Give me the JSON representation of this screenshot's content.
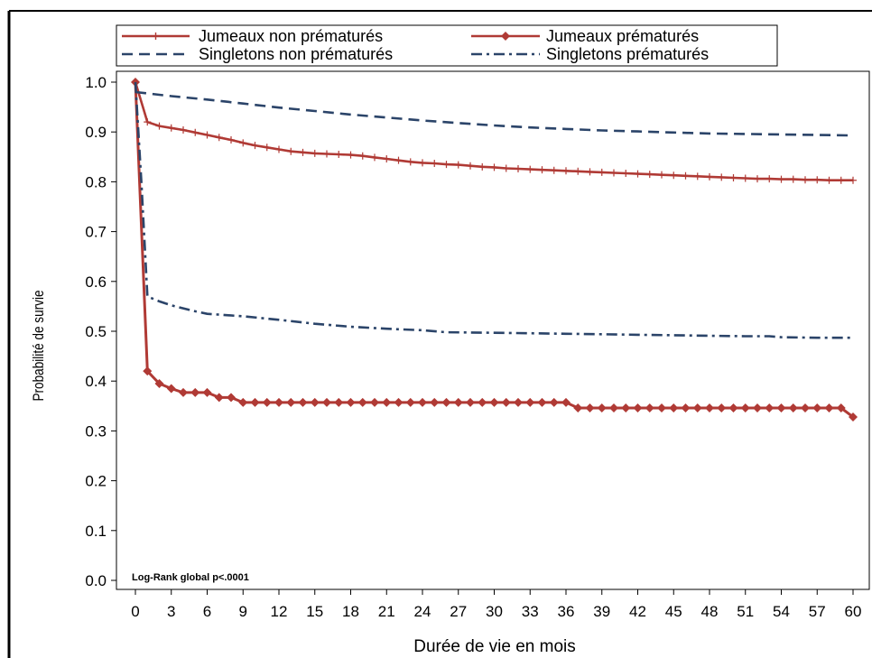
{
  "chart_data": {
    "type": "line",
    "xlabel": "Durée de vie en mois",
    "ylabel": "Probabilité de survie",
    "xlim": [
      0,
      60
    ],
    "ylim": [
      0.0,
      1.0
    ],
    "x_ticks": [
      0,
      3,
      6,
      9,
      12,
      15,
      18,
      21,
      24,
      27,
      30,
      33,
      36,
      39,
      42,
      45,
      48,
      51,
      54,
      57,
      60
    ],
    "y_ticks": [
      "0.0",
      "0.1",
      "0.2",
      "0.3",
      "0.4",
      "0.5",
      "0.6",
      "0.7",
      "0.8",
      "0.9",
      "1.0"
    ],
    "grid": false,
    "legend_position": "top",
    "annotation": "Log-Rank global p<.0001",
    "series": [
      {
        "name": "Jumeaux non prématurés",
        "color": "#b03a35",
        "style": "solid-plus",
        "points": [
          [
            0,
            1.0
          ],
          [
            1,
            0.92
          ],
          [
            2,
            0.912
          ],
          [
            3,
            0.908
          ],
          [
            4,
            0.904
          ],
          [
            5,
            0.899
          ],
          [
            6,
            0.894
          ],
          [
            7,
            0.889
          ],
          [
            8,
            0.884
          ],
          [
            9,
            0.878
          ],
          [
            10,
            0.873
          ],
          [
            11,
            0.869
          ],
          [
            12,
            0.865
          ],
          [
            13,
            0.861
          ],
          [
            14,
            0.859
          ],
          [
            15,
            0.857
          ],
          [
            16,
            0.856
          ],
          [
            17,
            0.855
          ],
          [
            18,
            0.854
          ],
          [
            19,
            0.852
          ],
          [
            20,
            0.849
          ],
          [
            21,
            0.846
          ],
          [
            22,
            0.843
          ],
          [
            23,
            0.84
          ],
          [
            24,
            0.838
          ],
          [
            25,
            0.837
          ],
          [
            26,
            0.835
          ],
          [
            27,
            0.834
          ],
          [
            28,
            0.832
          ],
          [
            29,
            0.83
          ],
          [
            30,
            0.829
          ],
          [
            31,
            0.827
          ],
          [
            32,
            0.826
          ],
          [
            33,
            0.825
          ],
          [
            34,
            0.824
          ],
          [
            35,
            0.823
          ],
          [
            36,
            0.822
          ],
          [
            37,
            0.821
          ],
          [
            38,
            0.82
          ],
          [
            39,
            0.819
          ],
          [
            40,
            0.818
          ],
          [
            41,
            0.817
          ],
          [
            42,
            0.816
          ],
          [
            43,
            0.815
          ],
          [
            44,
            0.814
          ],
          [
            45,
            0.813
          ],
          [
            46,
            0.812
          ],
          [
            47,
            0.811
          ],
          [
            48,
            0.81
          ],
          [
            49,
            0.809
          ],
          [
            50,
            0.808
          ],
          [
            51,
            0.807
          ],
          [
            52,
            0.806
          ],
          [
            53,
            0.806
          ],
          [
            54,
            0.805
          ],
          [
            55,
            0.805
          ],
          [
            56,
            0.804
          ],
          [
            57,
            0.804
          ],
          [
            58,
            0.803
          ],
          [
            59,
            0.803
          ],
          [
            60,
            0.803
          ]
        ]
      },
      {
        "name": "Jumeaux prématurés",
        "color": "#b03a35",
        "style": "solid-diamond",
        "points": [
          [
            0,
            1.0
          ],
          [
            1,
            0.42
          ],
          [
            2,
            0.395
          ],
          [
            3,
            0.385
          ],
          [
            4,
            0.377
          ],
          [
            5,
            0.377
          ],
          [
            6,
            0.377
          ],
          [
            7,
            0.367
          ],
          [
            8,
            0.367
          ],
          [
            9,
            0.357
          ],
          [
            10,
            0.357
          ],
          [
            11,
            0.357
          ],
          [
            12,
            0.357
          ],
          [
            13,
            0.357
          ],
          [
            14,
            0.357
          ],
          [
            15,
            0.357
          ],
          [
            16,
            0.357
          ],
          [
            17,
            0.357
          ],
          [
            18,
            0.357
          ],
          [
            19,
            0.357
          ],
          [
            20,
            0.357
          ],
          [
            21,
            0.357
          ],
          [
            22,
            0.357
          ],
          [
            23,
            0.357
          ],
          [
            24,
            0.357
          ],
          [
            25,
            0.357
          ],
          [
            26,
            0.357
          ],
          [
            27,
            0.357
          ],
          [
            28,
            0.357
          ],
          [
            29,
            0.357
          ],
          [
            30,
            0.357
          ],
          [
            31,
            0.357
          ],
          [
            32,
            0.357
          ],
          [
            33,
            0.357
          ],
          [
            34,
            0.357
          ],
          [
            35,
            0.357
          ],
          [
            36,
            0.357
          ],
          [
            37,
            0.346
          ],
          [
            38,
            0.346
          ],
          [
            39,
            0.346
          ],
          [
            40,
            0.346
          ],
          [
            41,
            0.346
          ],
          [
            42,
            0.346
          ],
          [
            43,
            0.346
          ],
          [
            44,
            0.346
          ],
          [
            45,
            0.346
          ],
          [
            46,
            0.346
          ],
          [
            47,
            0.346
          ],
          [
            48,
            0.346
          ],
          [
            49,
            0.346
          ],
          [
            50,
            0.346
          ],
          [
            51,
            0.346
          ],
          [
            52,
            0.346
          ],
          [
            53,
            0.346
          ],
          [
            54,
            0.346
          ],
          [
            55,
            0.346
          ],
          [
            56,
            0.346
          ],
          [
            57,
            0.346
          ],
          [
            58,
            0.346
          ],
          [
            59,
            0.346
          ],
          [
            60,
            0.328
          ]
        ]
      },
      {
        "name": "Singletons non prématurés",
        "color": "#2b4469",
        "style": "dashed",
        "points": [
          [
            0,
            0.98
          ],
          [
            3,
            0.972
          ],
          [
            6,
            0.965
          ],
          [
            9,
            0.957
          ],
          [
            12,
            0.949
          ],
          [
            15,
            0.942
          ],
          [
            18,
            0.935
          ],
          [
            21,
            0.929
          ],
          [
            24,
            0.923
          ],
          [
            27,
            0.918
          ],
          [
            30,
            0.913
          ],
          [
            33,
            0.909
          ],
          [
            36,
            0.906
          ],
          [
            39,
            0.903
          ],
          [
            42,
            0.901
          ],
          [
            45,
            0.899
          ],
          [
            48,
            0.897
          ],
          [
            51,
            0.896
          ],
          [
            54,
            0.895
          ],
          [
            57,
            0.894
          ],
          [
            60,
            0.893
          ]
        ]
      },
      {
        "name": "Singletons prématurés",
        "color": "#2b4469",
        "style": "dashdot",
        "points": [
          [
            0,
            1.0
          ],
          [
            0.5,
            0.8
          ],
          [
            1,
            0.57
          ],
          [
            2,
            0.56
          ],
          [
            3,
            0.552
          ],
          [
            5,
            0.54
          ],
          [
            6,
            0.535
          ],
          [
            9,
            0.53
          ],
          [
            12,
            0.523
          ],
          [
            15,
            0.515
          ],
          [
            18,
            0.509
          ],
          [
            21,
            0.505
          ],
          [
            24,
            0.502
          ],
          [
            26,
            0.498
          ],
          [
            30,
            0.497
          ],
          [
            33,
            0.496
          ],
          [
            36,
            0.495
          ],
          [
            39,
            0.494
          ],
          [
            42,
            0.493
          ],
          [
            45,
            0.492
          ],
          [
            48,
            0.491
          ],
          [
            51,
            0.49
          ],
          [
            53,
            0.49
          ],
          [
            54,
            0.488
          ],
          [
            57,
            0.487
          ],
          [
            60,
            0.487
          ]
        ]
      }
    ]
  }
}
